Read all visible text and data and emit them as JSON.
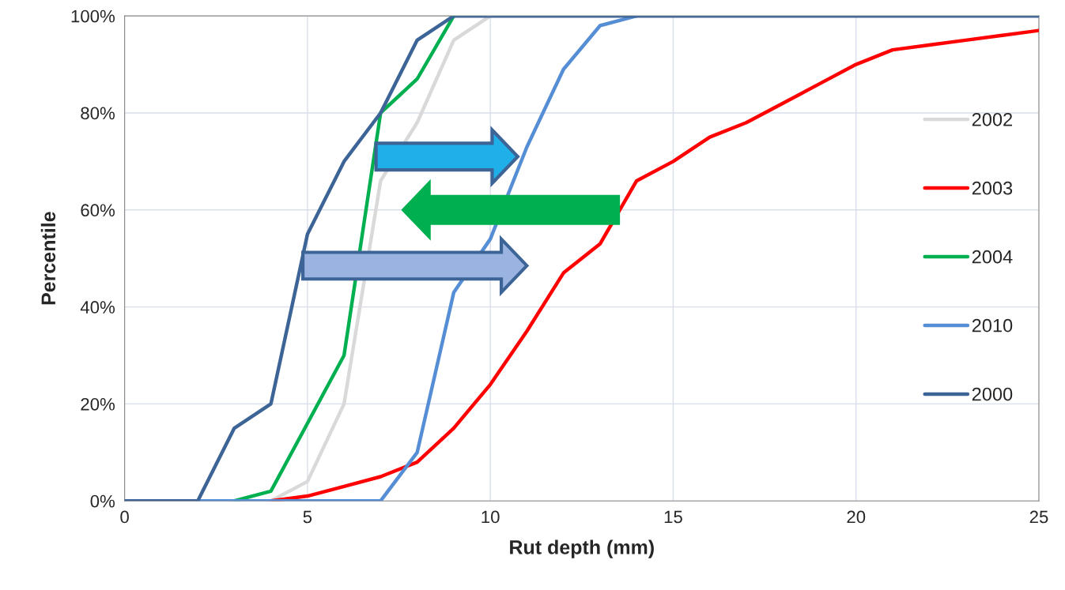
{
  "chart_data": {
    "type": "line",
    "xlabel": "Rut depth (mm)",
    "ylabel": "Percentile",
    "x": [
      0,
      1,
      2,
      3,
      4,
      5,
      6,
      7,
      8,
      9,
      10,
      11,
      12,
      13,
      14,
      15,
      16,
      17,
      18,
      19,
      20,
      21,
      22,
      23,
      24,
      25
    ],
    "series": [
      {
        "name": "2002",
        "color": "#d9d9d9",
        "values": [
          null,
          null,
          null,
          null,
          0,
          4,
          20,
          66,
          78,
          95,
          100,
          null,
          null,
          null,
          null,
          null,
          null,
          null,
          null,
          null,
          null,
          null,
          null,
          null,
          null,
          null
        ]
      },
      {
        "name": "2003",
        "color": "#ff0000",
        "values": [
          null,
          null,
          null,
          null,
          0,
          1,
          3,
          5,
          8,
          15,
          24,
          35,
          47,
          53,
          66,
          70,
          75,
          78,
          82,
          86,
          90,
          93,
          94,
          95,
          96,
          97
        ]
      },
      {
        "name": "2004",
        "color": "#00b050",
        "values": [
          null,
          null,
          null,
          0,
          2,
          16,
          30,
          80,
          87,
          100,
          null,
          null,
          null,
          null,
          null,
          null,
          null,
          null,
          null,
          null,
          null,
          null,
          null,
          null,
          null,
          null
        ]
      },
      {
        "name": "2010",
        "color": "#558ed5",
        "values": [
          null,
          null,
          0,
          0,
          0,
          0,
          0,
          0,
          10,
          43,
          54,
          73,
          89,
          98,
          100,
          null,
          null,
          null,
          null,
          null,
          null,
          null,
          null,
          null,
          null,
          null
        ]
      },
      {
        "name": "2000",
        "color": "#3c6496",
        "values": [
          0,
          0,
          0,
          15,
          20,
          55,
          70,
          80,
          95,
          100,
          100,
          100,
          100,
          100,
          100,
          100,
          100,
          100,
          100,
          100,
          100,
          100,
          100,
          100,
          100,
          100
        ]
      }
    ],
    "xlim": [
      0,
      25
    ],
    "xticks": [
      0,
      5,
      10,
      15,
      20,
      25
    ],
    "ylim": [
      0,
      100
    ],
    "yticks": [
      {
        "value": 0,
        "label": "0%"
      },
      {
        "value": 20,
        "label": "20%"
      },
      {
        "value": 40,
        "label": "40%"
      },
      {
        "value": 60,
        "label": "60%"
      },
      {
        "value": 80,
        "label": "80%"
      },
      {
        "value": 100,
        "label": "100%"
      }
    ],
    "grid": true,
    "legend": "right",
    "marker": "none",
    "line_style": "solid"
  }
}
